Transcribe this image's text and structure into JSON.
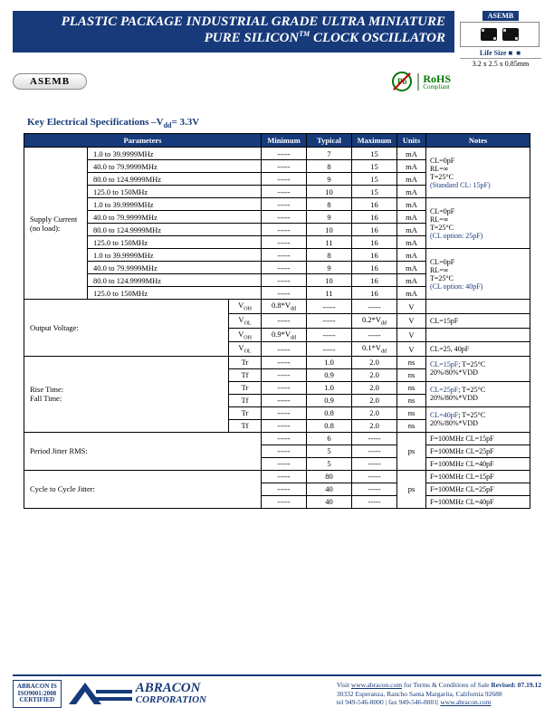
{
  "header": {
    "titleLine1": "PLASTIC PACKAGE INDUSTRIAL GRADE ULTRA MINIATURE",
    "titleLine2a": "PURE SILICON",
    "titleLine2b": " CLOCK OSCILLATOR",
    "tm": "TM",
    "modelLabel": "ASEMB",
    "lifeSize": "Life Size",
    "dims": "3.2 x 2.5 x 0.85mm",
    "pill": "ASEMB",
    "pb": "Pb",
    "rohs1": "RoHS",
    "rohs2": "Compliant"
  },
  "sectionTitle": "Key Electrical Specifications –V",
  "sectionTitleSub": "dd",
  "sectionTitleAfter": "= 3.3V",
  "cols": {
    "p": "Parameters",
    "min": "Minimum",
    "typ": "Typical",
    "max": "Maximum",
    "u": "Units",
    "n": "Notes"
  },
  "freq": [
    "1.0 to 39.9999MHz",
    "40.0 to 79.9999MHz",
    "80.0 to 124.9999MHz",
    "125.0 to 150MHz"
  ],
  "supplyLabel": "Supply Current\n(no load):",
  "supply": {
    "g1": {
      "typ": [
        "7",
        "8",
        "9",
        "10"
      ],
      "max": [
        "15",
        "15",
        "15",
        "15"
      ],
      "note": [
        "CL=0pF",
        "RL=∞",
        "T=25°C"
      ],
      "noteBlue": "(Standard CL: 15pF)"
    },
    "g2": {
      "typ": [
        "8",
        "9",
        "10",
        "11"
      ],
      "max": [
        "16",
        "16",
        "16",
        "16"
      ],
      "note": [
        "CL=0pF",
        "RL=∞",
        "T=25°C"
      ],
      "noteBlue": "(CL option: 25pF)"
    },
    "g3": {
      "typ": [
        "8",
        "9",
        "10",
        "11"
      ],
      "max": [
        "16",
        "16",
        "16",
        "16"
      ],
      "note": [
        "CL=0pF",
        "RL=∞",
        "T=25°C"
      ],
      "noteBlue": "(CL option: 40pF)"
    }
  },
  "ov": {
    "label": "Output Voltage:",
    "rows": [
      {
        "sym": "V",
        "sub": "OH",
        "min": "0.8*V",
        "minsub": "dd",
        "typ": "-----",
        "max": "-----",
        "u": "V",
        "note": ""
      },
      {
        "sym": "V",
        "sub": "OL",
        "min": "-----",
        "typ": "-----",
        "max": "0.2*V",
        "maxsub": "dd",
        "u": "V",
        "note": "CL=15pF"
      },
      {
        "sym": "V",
        "sub": "OH",
        "min": "0.9*V",
        "minsub": "dd",
        "typ": "-----",
        "max": "-----",
        "u": "V",
        "note": ""
      },
      {
        "sym": "V",
        "sub": "OL",
        "min": "-----",
        "typ": "-----",
        "max": "0.1*V",
        "maxsub": "dd",
        "u": "V",
        "note": "CL=25, 40pF"
      }
    ]
  },
  "rt": {
    "label": "Rise Time:\nFall Time:",
    "groups": [
      {
        "tr": "1.0",
        "tf": "0.9",
        "max": "2.0",
        "note1": "CL=15pF",
        "note2": "; T=25°C",
        "note3": "20%/80%*VDD"
      },
      {
        "tr": "1.0",
        "tf": "0.9",
        "max": "2.0",
        "note1": "CL=25pF",
        "note2": "; T=25°C",
        "note3": "20%/80%*VDD"
      },
      {
        "tr": "0.8",
        "tf": "0.8",
        "max": "2.0",
        "note1": "CL=40pF",
        "note2": "; T=25°C",
        "note3": "20%/80%*VDD"
      }
    ],
    "u": "ns"
  },
  "pj": {
    "label": "Period Jitter RMS:",
    "typ": [
      "6",
      "5",
      "5"
    ],
    "u": "ps",
    "notes": [
      "F=100MHz CL=15pF",
      "F=100MHz CL=25pF",
      "F=100MHz CL=40pF"
    ]
  },
  "cc": {
    "label": "Cycle to Cycle Jitter:",
    "typ": [
      "80",
      "40",
      "40"
    ],
    "u": "ps",
    "notes": [
      "F=100MHz CL=15pF",
      "F=100MHz CL=25pF",
      "F=100MHz CL=40pF"
    ]
  },
  "dash": "-----",
  "mA": "mA",
  "Tr": "Tr",
  "Tf": "Tf",
  "footer": {
    "cert": "ABRACON IS\nISO9001:2008\nCERTIFIED",
    "corp1": "ABRACON",
    "corp2": "CORPORATION",
    "visit": "Visit ",
    "url": "www.abracon.com",
    "terms": " for Terms & Conditions of Sale ",
    "rev": "Revised: 07.19.12",
    "addr": "30332 Esperanza, Rancho Santa Margarita, California 92688",
    "tel": "tel 949-546-8000 |  fax 949-546-8001|  ",
    "url2": "www.abracon.com"
  }
}
